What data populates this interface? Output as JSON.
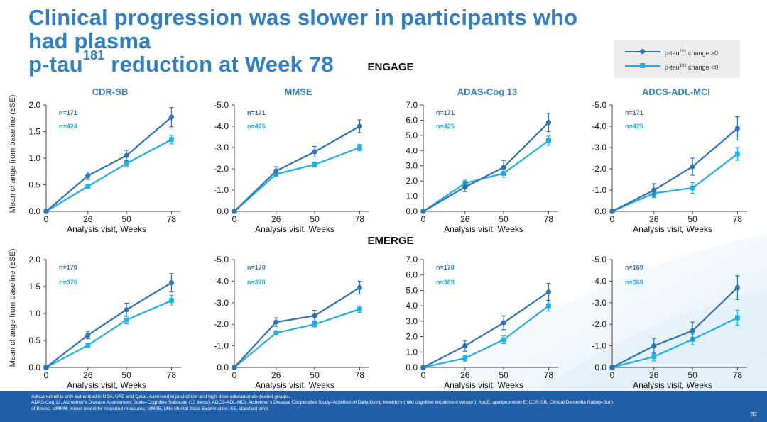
{
  "slide": {
    "title_line1": "Clinical progression was slower in participants who had plasma",
    "title_line2_pre": "p-tau",
    "title_line2_sup": "181",
    "title_line2_post": " reduction at Week 78",
    "page_number": "32",
    "footer_line1": "Aducanumab is only authorized in USA, UAE and Qatar. Assessed in pooled low and high dose aducanumab-treated groups.",
    "footer_line2": "ADAS-Cog 13, Alzheimer's Disease Assessment Scale–Cognitive Subscale (13 items); ADCS-ADL-MCI, Alzheimer's Disease Cooperative Study–Activities of Daily Living Inventory (mild cognitive impairment version); ApoE, apolipoprotein E; CDR-SB, Clinical Dementia Rating–Sum",
    "footer_line3": "of Boxes; MMRM, mixed model for repeated measures; MMSE, Mini-Mental State Examination; SE, standard error."
  },
  "legend": [
    {
      "pre": "p-tau",
      "sup": "181",
      "post": " change ≥0",
      "color": "#2e74b5",
      "marker": "circle"
    },
    {
      "pre": "p-tau",
      "sup": "181",
      "post": " change <0",
      "color": "#1fb0e6",
      "marker": "square"
    }
  ],
  "colors": {
    "series_ge0": "#2e74b5",
    "series_lt0": "#1fb0e6",
    "title": "#2f7fc4",
    "footer_bg": "#1f5fa8"
  },
  "shared": {
    "ylabel": "Mean change from baseline (±SE)",
    "xlabel": "Analysis visit, Weeks"
  },
  "studies": {
    "engage": "ENGAGE",
    "emerge": "EMERGE"
  },
  "chart_data": [
    {
      "type": "line",
      "study": "ENGAGE",
      "title": "CDR-SB",
      "xlabel": "Analysis visit, Weeks",
      "ylabel": "Mean change from baseline (±SE)",
      "x": [
        0,
        26,
        50,
        78
      ],
      "xlim": [
        0,
        84
      ],
      "ylim": [
        0,
        2.0
      ],
      "yticks": [
        "0.0",
        "0.5",
        "1.0",
        "1.5",
        "2.0"
      ],
      "y_reversed": false,
      "series": [
        {
          "name": "p-tau181 change ≥0",
          "n_label": "n=171",
          "values": [
            0,
            0.67,
            1.05,
            1.77
          ],
          "se": [
            0,
            0.07,
            0.1,
            0.18
          ]
        },
        {
          "name": "p-tau181 change <0",
          "n_label": "n=424",
          "values": [
            0,
            0.47,
            0.9,
            1.35
          ],
          "se": [
            0,
            0.03,
            0.06,
            0.08
          ]
        }
      ]
    },
    {
      "type": "line",
      "study": "ENGAGE",
      "title": "MMSE",
      "xlabel": "Analysis visit, Weeks",
      "ylabel": "",
      "x": [
        0,
        26,
        50,
        78
      ],
      "xlim": [
        0,
        84
      ],
      "ylim": [
        0,
        -5.0
      ],
      "yticks": [
        "0.0",
        "-1.0",
        "-2.0",
        "-3.0",
        "-4.0",
        "-5.0"
      ],
      "y_reversed": true,
      "series": [
        {
          "name": "p-tau181 change ≥0",
          "n_label": "n=171",
          "values": [
            0,
            -1.9,
            -2.8,
            -4.0
          ],
          "se": [
            0,
            0.2,
            0.25,
            0.3
          ]
        },
        {
          "name": "p-tau181 change <0",
          "n_label": "n=425",
          "values": [
            0,
            -1.75,
            -2.2,
            -3.0
          ],
          "se": [
            0,
            0.1,
            0.12,
            0.15
          ]
        }
      ]
    },
    {
      "type": "line",
      "study": "ENGAGE",
      "title": "ADAS-Cog 13",
      "xlabel": "Analysis visit, Weeks",
      "ylabel": "",
      "x": [
        0,
        26,
        50,
        78
      ],
      "xlim": [
        0,
        84
      ],
      "ylim": [
        0,
        7.0
      ],
      "yticks": [
        "0.0",
        "1.0",
        "2.0",
        "3.0",
        "4.0",
        "5.0",
        "6.0",
        "7.0"
      ],
      "y_reversed": false,
      "series": [
        {
          "name": "p-tau181 change ≥0",
          "n_label": "n=171",
          "values": [
            0,
            1.6,
            2.9,
            5.85
          ],
          "se": [
            0,
            0.3,
            0.45,
            0.6
          ]
        },
        {
          "name": "p-tau181 change <0",
          "n_label": "n=425",
          "values": [
            0,
            1.85,
            2.5,
            4.65
          ],
          "se": [
            0,
            0.2,
            0.25,
            0.3
          ]
        }
      ]
    },
    {
      "type": "line",
      "study": "ENGAGE",
      "title": "ADCS-ADL-MCI",
      "xlabel": "Analysis visit, Weeks",
      "ylabel": "",
      "x": [
        0,
        26,
        50,
        78
      ],
      "xlim": [
        0,
        84
      ],
      "ylim": [
        0,
        -5.0
      ],
      "yticks": [
        "0.0",
        "-1.0",
        "-2.0",
        "-3.0",
        "-4.0",
        "-5.0"
      ],
      "y_reversed": true,
      "series": [
        {
          "name": "p-tau181 change ≥0",
          "n_label": "n=171",
          "values": [
            0,
            -1.0,
            -2.1,
            -3.9
          ],
          "se": [
            0,
            0.3,
            0.4,
            0.55
          ]
        },
        {
          "name": "p-tau181 change <0",
          "n_label": "n=425",
          "values": [
            0,
            -0.85,
            -1.1,
            -2.7
          ],
          "se": [
            0,
            0.2,
            0.25,
            0.3
          ]
        }
      ]
    },
    {
      "type": "line",
      "study": "EMERGE",
      "title": "",
      "xlabel": "Analysis visit, Weeks",
      "ylabel": "Mean change from baseline (±SE)",
      "x": [
        0,
        26,
        50,
        78
      ],
      "xlim": [
        0,
        84
      ],
      "ylim": [
        0,
        2.0
      ],
      "yticks": [
        "0.0",
        "0.5",
        "1.0",
        "1.5",
        "2.0"
      ],
      "y_reversed": false,
      "series": [
        {
          "name": "p-tau181 change ≥0",
          "n_label": "n=170",
          "values": [
            0,
            0.6,
            1.07,
            1.57
          ],
          "se": [
            0,
            0.07,
            0.12,
            0.17
          ]
        },
        {
          "name": "p-tau181 change <0",
          "n_label": "n=370",
          "values": [
            0,
            0.41,
            0.88,
            1.24
          ],
          "se": [
            0,
            0.04,
            0.07,
            0.1
          ]
        }
      ]
    },
    {
      "type": "line",
      "study": "EMERGE",
      "title": "",
      "xlabel": "Analysis visit, Weeks",
      "ylabel": "",
      "x": [
        0,
        26,
        50,
        78
      ],
      "xlim": [
        0,
        84
      ],
      "ylim": [
        0,
        -5.0
      ],
      "yticks": [
        "0.0",
        "-1.0",
        "-2.0",
        "-3.0",
        "-4.0",
        "-5.0"
      ],
      "y_reversed": true,
      "series": [
        {
          "name": "p-tau181 change ≥0",
          "n_label": "n=170",
          "values": [
            0,
            -2.1,
            -2.4,
            -3.7
          ],
          "se": [
            0,
            0.2,
            0.25,
            0.3
          ]
        },
        {
          "name": "p-tau181 change <0",
          "n_label": "n=370",
          "values": [
            0,
            -1.6,
            -2.0,
            -2.7
          ],
          "se": [
            0,
            0.1,
            0.12,
            0.15
          ]
        }
      ]
    },
    {
      "type": "line",
      "study": "EMERGE",
      "title": "",
      "xlabel": "Analysis visit, Weeks",
      "ylabel": "",
      "x": [
        0,
        26,
        50,
        78
      ],
      "xlim": [
        0,
        84
      ],
      "ylim": [
        0,
        7.0
      ],
      "yticks": [
        "0.0",
        "1.0",
        "2.0",
        "3.0",
        "4.0",
        "5.0",
        "6.0",
        "7.0"
      ],
      "y_reversed": false,
      "series": [
        {
          "name": "p-tau181 change ≥0",
          "n_label": "n=170",
          "values": [
            0,
            1.4,
            2.9,
            4.9
          ],
          "se": [
            0,
            0.35,
            0.45,
            0.55
          ]
        },
        {
          "name": "p-tau181 change <0",
          "n_label": "n=369",
          "values": [
            0,
            0.6,
            1.8,
            4.0
          ],
          "se": [
            0,
            0.2,
            0.25,
            0.35
          ]
        }
      ]
    },
    {
      "type": "line",
      "study": "EMERGE",
      "title": "",
      "xlabel": "Analysis visit, Weeks",
      "ylabel": "",
      "x": [
        0,
        26,
        50,
        78
      ],
      "xlim": [
        0,
        84
      ],
      "ylim": [
        0,
        -5.0
      ],
      "yticks": [
        "0.0",
        "-1.0",
        "-2.0",
        "-3.0",
        "-4.0",
        "-5.0"
      ],
      "y_reversed": true,
      "series": [
        {
          "name": "p-tau181 change ≥0",
          "n_label": "n=169",
          "values": [
            0,
            -1.0,
            -1.7,
            -3.7
          ],
          "se": [
            0,
            0.35,
            0.4,
            0.55
          ]
        },
        {
          "name": "p-tau181 change <0",
          "n_label": "n=369",
          "values": [
            0,
            -0.5,
            -1.3,
            -2.3
          ],
          "se": [
            0,
            0.2,
            0.25,
            0.35
          ]
        }
      ]
    }
  ]
}
